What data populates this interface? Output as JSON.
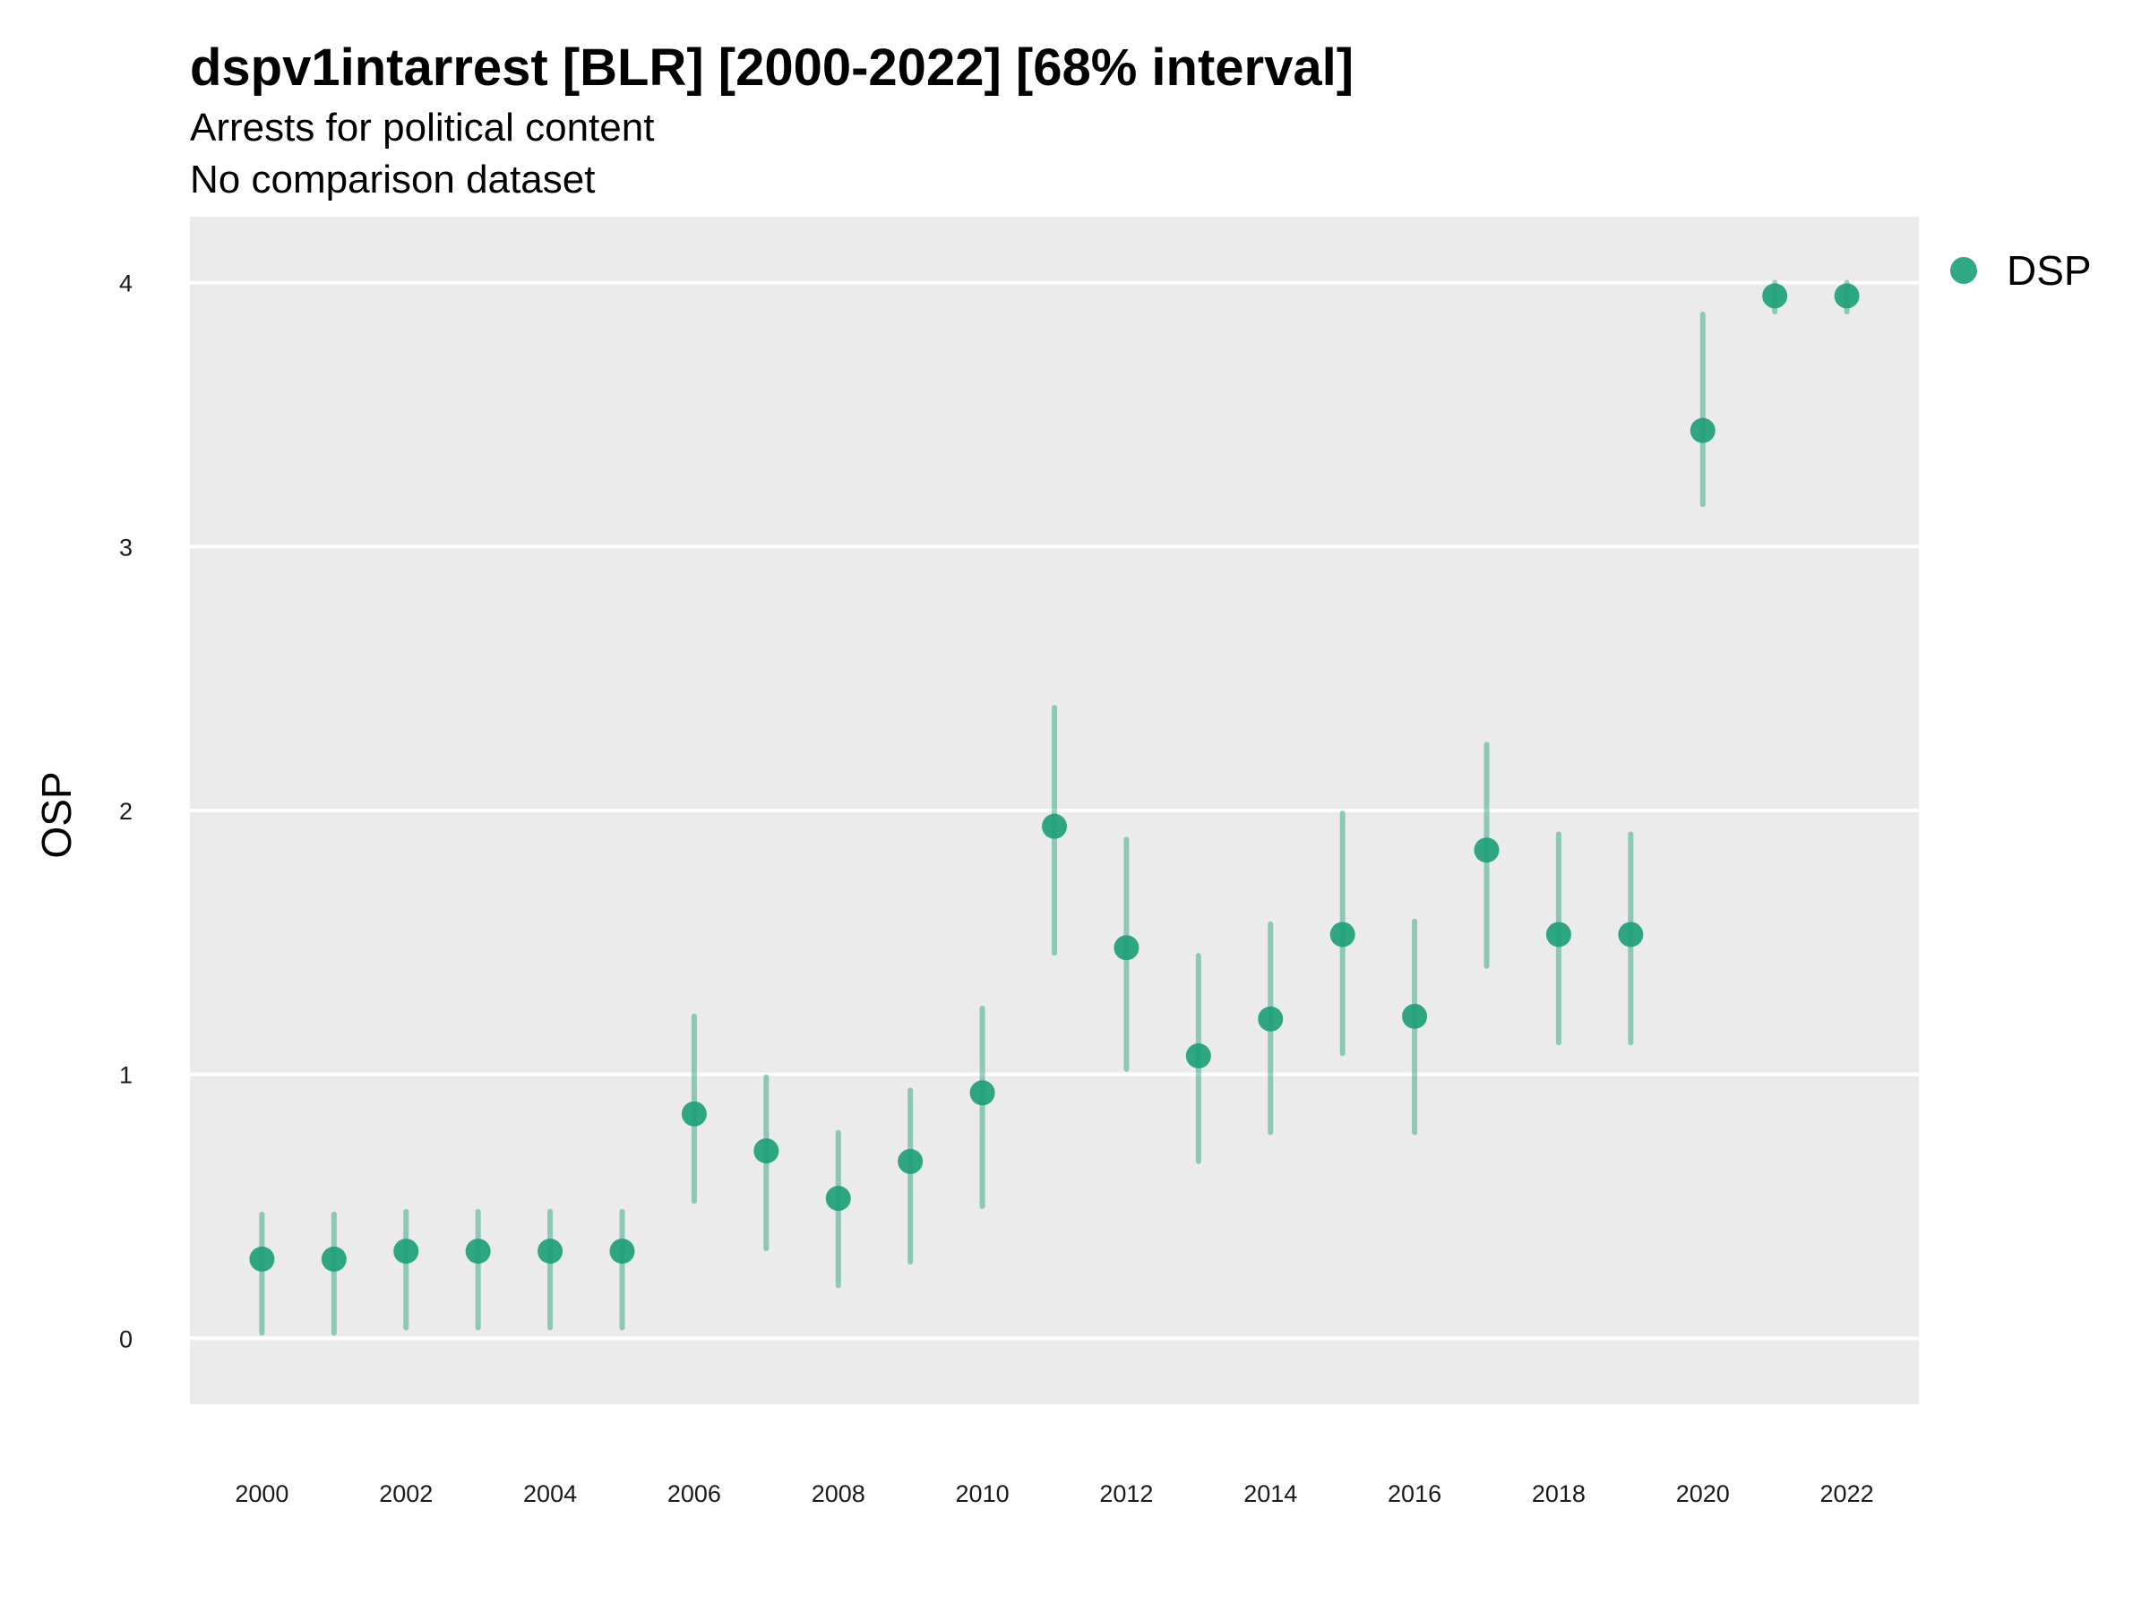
{
  "chart_data": {
    "type": "scatter",
    "title": "dspv1intarrest [BLR] [2000-2022] [68% interval]",
    "subtitle_lines": [
      "Arrests for political content",
      "No comparison dataset"
    ],
    "xlabel": "",
    "ylabel": "OSP",
    "xlim": [
      1999,
      2023
    ],
    "ylim": [
      -0.25,
      4.25
    ],
    "x_ticks": [
      2000,
      2002,
      2004,
      2006,
      2008,
      2010,
      2012,
      2014,
      2016,
      2018,
      2020,
      2022
    ],
    "y_ticks": [
      0,
      1,
      2,
      3,
      4
    ],
    "grid": true,
    "legend_position": "top-right",
    "legend": [
      "DSP"
    ],
    "colors": {
      "point": "#1b9e77",
      "panel": "#ebebeb",
      "grid": "#ffffff"
    },
    "series": [
      {
        "name": "DSP",
        "x": [
          2000,
          2001,
          2002,
          2003,
          2004,
          2005,
          2006,
          2007,
          2008,
          2009,
          2010,
          2011,
          2012,
          2013,
          2014,
          2015,
          2016,
          2017,
          2018,
          2019,
          2020,
          2021,
          2022
        ],
        "y": [
          0.3,
          0.3,
          0.33,
          0.33,
          0.33,
          0.33,
          0.85,
          0.71,
          0.53,
          0.67,
          0.93,
          1.94,
          1.48,
          1.07,
          1.21,
          1.53,
          1.22,
          1.85,
          1.53,
          1.53,
          3.44,
          3.95,
          3.95
        ],
        "lower": [
          0.02,
          0.02,
          0.04,
          0.04,
          0.04,
          0.04,
          0.52,
          0.34,
          0.2,
          0.29,
          0.5,
          1.46,
          1.02,
          0.67,
          0.78,
          1.08,
          0.78,
          1.41,
          1.12,
          1.12,
          3.16,
          3.89,
          3.89
        ],
        "upper": [
          0.47,
          0.47,
          0.48,
          0.48,
          0.48,
          0.48,
          1.22,
          0.99,
          0.78,
          0.94,
          1.25,
          2.39,
          1.89,
          1.45,
          1.57,
          1.99,
          1.58,
          2.25,
          1.91,
          1.91,
          3.88,
          4.0,
          4.0
        ]
      }
    ]
  }
}
